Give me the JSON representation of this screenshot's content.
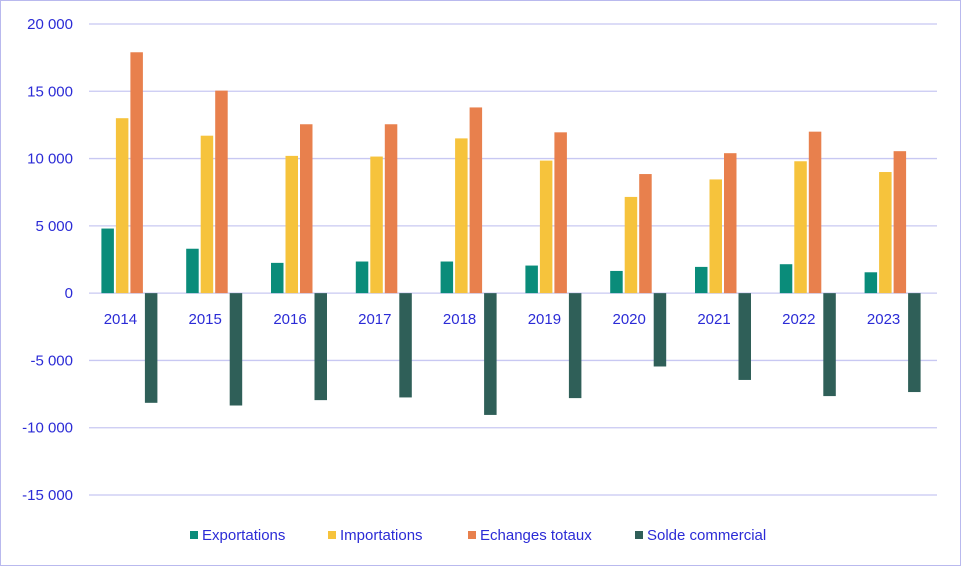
{
  "chart_data": {
    "type": "bar",
    "title": "",
    "xlabel": "",
    "ylabel": "",
    "categories": [
      "2014",
      "2015",
      "2016",
      "2017",
      "2018",
      "2019",
      "2020",
      "2021",
      "2022",
      "2023"
    ],
    "series": [
      {
        "name": "Exportations",
        "color": "#0a8c7a",
        "values": [
          4800,
          3300,
          2250,
          2350,
          2350,
          2050,
          1650,
          1950,
          2150,
          1550
        ]
      },
      {
        "name": "Importations",
        "color": "#f6c33c",
        "values": [
          13000,
          11700,
          10200,
          10150,
          11500,
          9850,
          7150,
          8450,
          9800,
          9000
        ]
      },
      {
        "name": "Echanges totaux",
        "color": "#e8804d",
        "values": [
          17900,
          15050,
          12550,
          12550,
          13800,
          11950,
          8850,
          10400,
          12000,
          10550
        ]
      },
      {
        "name": "Solde commercial",
        "color": "#2f5f58",
        "values": [
          -8150,
          -8350,
          -7950,
          -7750,
          -9050,
          -7800,
          -5450,
          -6450,
          -7650,
          -7350
        ]
      }
    ],
    "yticks": [
      "20 000",
      "15 000",
      "10 000",
      "5 000",
      "0",
      "-5 000",
      "-10 000",
      "-15 000"
    ],
    "ylim": [
      -15000,
      20000
    ],
    "grid": true,
    "legend_position": "bottom"
  }
}
